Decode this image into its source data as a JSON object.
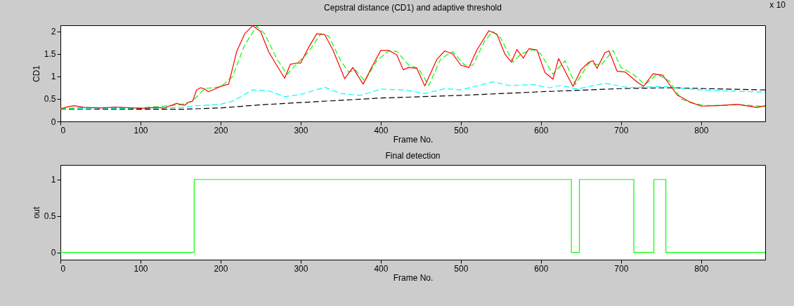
{
  "chart_data": [
    {
      "type": "line",
      "title": "Cepstral distance (CD1) and adaptive threshold",
      "xlabel": "Frame No.",
      "ylabel": "CD1",
      "annotations": [
        "x 10"
      ],
      "xlim": [
        0,
        880
      ],
      "xticks": [
        0,
        100,
        200,
        300,
        400,
        500,
        600,
        700,
        800
      ],
      "ylim": [
        0,
        2.14
      ],
      "yticks": [
        0,
        0.5,
        1,
        1.5,
        2
      ],
      "grid": false,
      "series": [
        {
          "color": "#000000",
          "line_style": "dashed",
          "x": [
            0,
            150,
            200,
            250,
            300,
            400,
            500,
            600,
            700,
            760,
            880
          ],
          "values": [
            0.27,
            0.27,
            0.3,
            0.37,
            0.42,
            0.52,
            0.58,
            0.66,
            0.73,
            0.75,
            0.7
          ]
        },
        {
          "color": "#00ffff",
          "line_style": "dashed",
          "x": [
            0,
            100,
            150,
            170,
            200,
            215,
            240,
            260,
            280,
            300,
            330,
            350,
            375,
            400,
            430,
            455,
            480,
            500,
            540,
            560,
            590,
            610,
            625,
            645,
            680,
            710,
            750,
            800,
            880
          ],
          "values": [
            0.28,
            0.29,
            0.31,
            0.35,
            0.38,
            0.45,
            0.7,
            0.68,
            0.55,
            0.6,
            0.76,
            0.62,
            0.58,
            0.72,
            0.7,
            0.62,
            0.73,
            0.7,
            0.88,
            0.8,
            0.82,
            0.75,
            0.8,
            0.72,
            0.85,
            0.75,
            0.78,
            0.7,
            0.65
          ]
        },
        {
          "color": "#00ff00",
          "line_style": "dashed",
          "x": [
            0,
            30,
            100,
            150,
            165,
            180,
            200,
            215,
            230,
            245,
            255,
            270,
            283,
            295,
            310,
            325,
            335,
            350,
            360,
            368,
            380,
            395,
            410,
            420,
            435,
            447,
            460,
            475,
            490,
            505,
            515,
            530,
            540,
            550,
            565,
            575,
            590,
            600,
            615,
            630,
            643,
            660,
            675,
            690,
            700,
            715,
            730,
            745,
            760,
            775,
            790,
            805,
            850,
            880
          ],
          "values": [
            0.28,
            0.31,
            0.3,
            0.37,
            0.45,
            0.73,
            0.77,
            1.0,
            1.7,
            2.12,
            1.95,
            1.4,
            1.05,
            1.28,
            1.55,
            1.95,
            1.9,
            1.35,
            1.1,
            1.15,
            0.9,
            1.35,
            1.57,
            1.56,
            1.25,
            1.18,
            0.8,
            1.4,
            1.55,
            1.25,
            1.25,
            1.8,
            2.0,
            1.85,
            1.32,
            1.5,
            1.6,
            1.5,
            1.05,
            1.35,
            0.82,
            1.3,
            1.25,
            1.58,
            1.2,
            1.05,
            0.82,
            1.05,
            0.9,
            0.5,
            0.4,
            0.35,
            0.37,
            0.33
          ]
        },
        {
          "color": "#ff0000",
          "line_style": "solid",
          "x": [
            0,
            10,
            17,
            30,
            50,
            70,
            100,
            120,
            130,
            145,
            155,
            160,
            165,
            170,
            175,
            180,
            185,
            190,
            200,
            210,
            220,
            230,
            240,
            250,
            260,
            270,
            280,
            287,
            295,
            300,
            310,
            320,
            330,
            340,
            355,
            365,
            378,
            390,
            400,
            410,
            420,
            428,
            435,
            445,
            455,
            470,
            480,
            490,
            500,
            510,
            520,
            535,
            545,
            555,
            563,
            570,
            578,
            585,
            595,
            605,
            615,
            622,
            630,
            640,
            650,
            660,
            665,
            670,
            680,
            685,
            695,
            705,
            720,
            728,
            740,
            752,
            770,
            785,
            800,
            820,
            845,
            870,
            880
          ],
          "values": [
            0.28,
            0.33,
            0.35,
            0.31,
            0.3,
            0.32,
            0.29,
            0.31,
            0.3,
            0.4,
            0.36,
            0.43,
            0.45,
            0.7,
            0.75,
            0.72,
            0.66,
            0.7,
            0.78,
            0.83,
            1.55,
            1.95,
            2.13,
            2.0,
            1.55,
            1.25,
            0.96,
            1.27,
            1.3,
            1.3,
            1.65,
            1.95,
            1.93,
            1.6,
            0.95,
            1.2,
            0.83,
            1.25,
            1.58,
            1.58,
            1.48,
            1.15,
            1.2,
            1.18,
            0.79,
            1.38,
            1.57,
            1.5,
            1.25,
            1.2,
            1.59,
            2.02,
            1.94,
            1.5,
            1.32,
            1.6,
            1.41,
            1.62,
            1.59,
            1.09,
            0.94,
            1.4,
            1.12,
            0.78,
            1.15,
            1.32,
            1.35,
            1.18,
            1.53,
            1.57,
            1.12,
            1.1,
            0.88,
            0.78,
            1.06,
            1.03,
            0.59,
            0.44,
            0.34,
            0.35,
            0.38,
            0.31,
            0.35
          ]
        }
      ]
    },
    {
      "type": "step",
      "title": "Final detection",
      "xlabel": "Frame No.",
      "ylabel": "out",
      "xlim": [
        0,
        880
      ],
      "xticks": [
        0,
        100,
        200,
        300,
        400,
        500,
        600,
        700,
        800
      ],
      "ylim": [
        -0.1,
        1.2
      ],
      "yticks": [
        0,
        0.5,
        1
      ],
      "grid": false,
      "series": [
        {
          "color": "#00ff00",
          "line_style": "solid",
          "x": [
            0,
            167,
            638,
            648,
            716,
            741,
            756,
            880
          ],
          "values": [
            0,
            1,
            0,
            1,
            0,
            1,
            0,
            0
          ]
        }
      ]
    }
  ]
}
